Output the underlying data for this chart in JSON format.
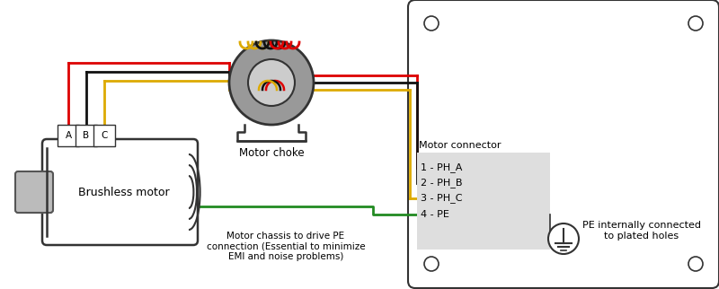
{
  "bg_color": "#ffffff",
  "wire_red": "#dd0000",
  "wire_black": "#111111",
  "wire_yellow": "#ddaa00",
  "wire_green": "#228B22",
  "motor_label": "Brushless motor",
  "choke_label": "Motor choke",
  "connector_label": "Motor connector",
  "connector_pins": [
    "1 - PH_A",
    "2 - PH_B",
    "3 - PH_C",
    "4 - PE"
  ],
  "pe_label": "PE internally connected\nto plated holes",
  "motor_chassis_label": "Motor chassis to drive PE\nconnection (Essential to minimize\nEMI and noise problems)",
  "terminal_labels": [
    "A",
    "B",
    "C"
  ],
  "fig_width": 8.0,
  "fig_height": 3.22,
  "dpi": 100,
  "choke_color": "#aaaaaa",
  "choke_inner_color": "#cccccc",
  "choke_outer_edge": "#333333"
}
